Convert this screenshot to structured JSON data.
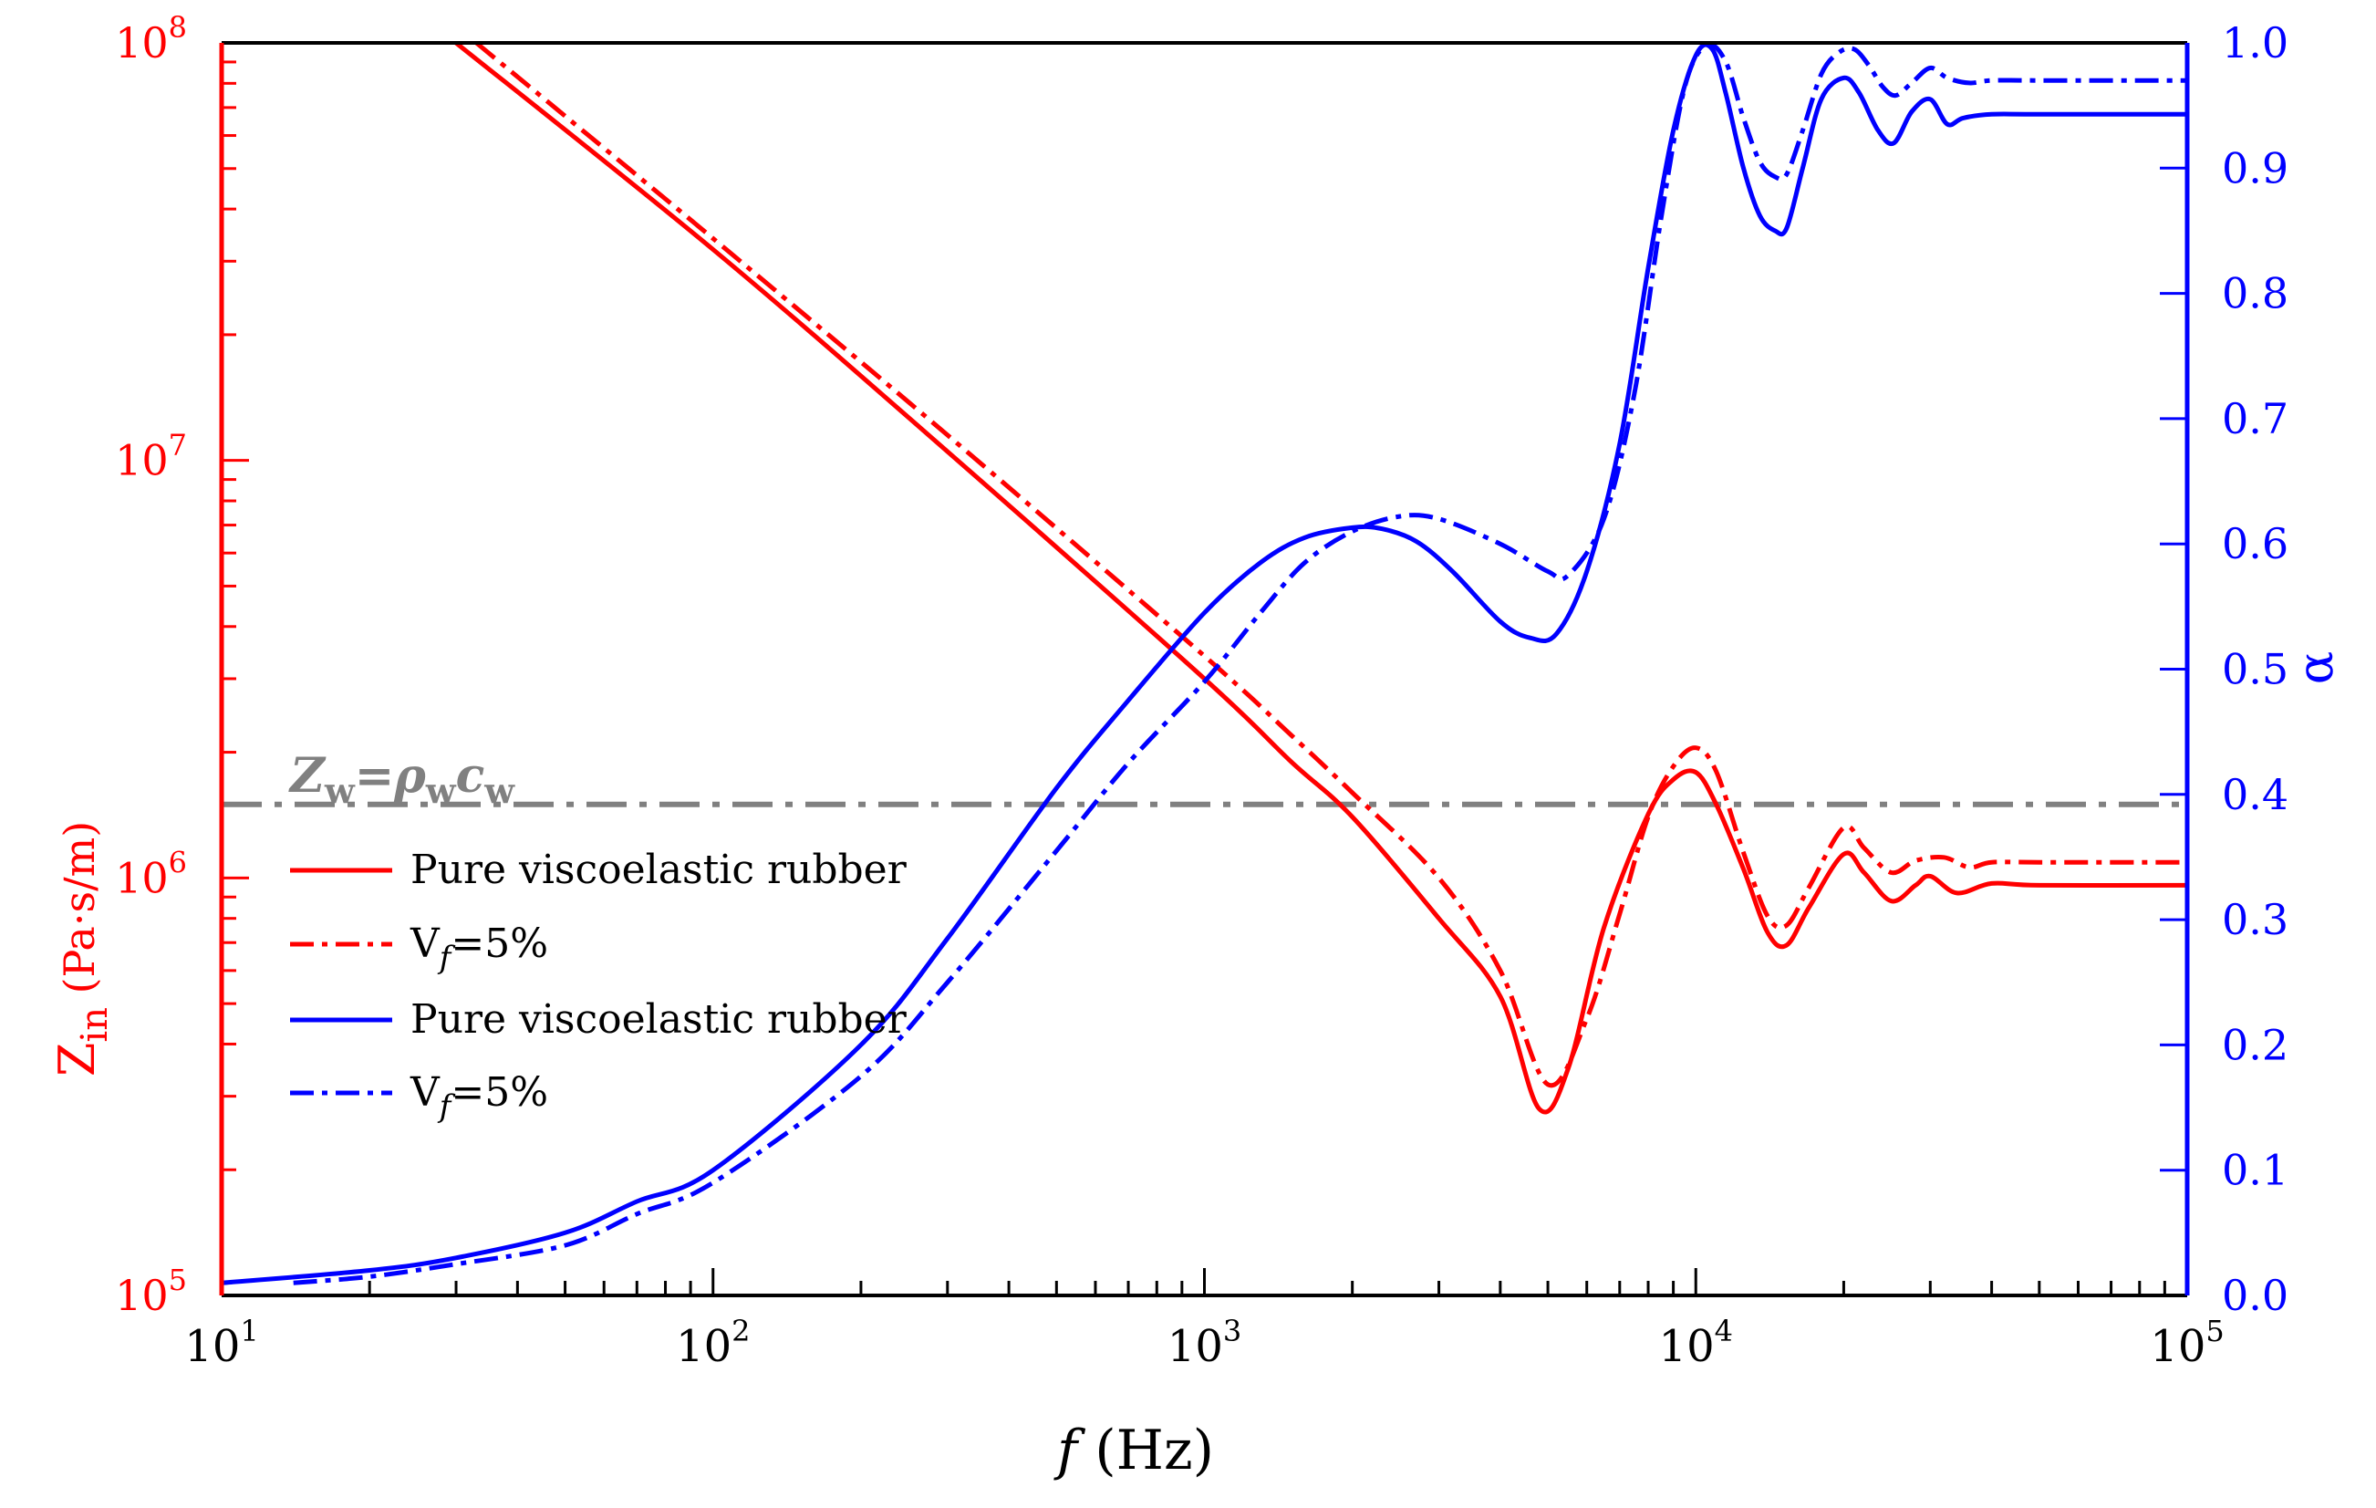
{
  "chart_data": {
    "type": "line",
    "xlabel": {
      "italic": "f",
      "rest": " (Hz)"
    },
    "x_scale": "log",
    "xlim": [
      10,
      100000
    ],
    "x_ticks": [
      {
        "value": 10,
        "base": "10",
        "exp": "1"
      },
      {
        "value": 100,
        "base": "10",
        "exp": "2"
      },
      {
        "value": 1000,
        "base": "10",
        "exp": "3"
      },
      {
        "value": 10000,
        "base": "10",
        "exp": "4"
      },
      {
        "value": 100000,
        "base": "10",
        "exp": "5"
      }
    ],
    "y_left": {
      "label": {
        "main": "Z",
        "sub": "in",
        "unit": " (Pa·s/m)"
      },
      "scale": "log",
      "lim": [
        100000,
        100000000
      ],
      "color": "#ff0000",
      "ticks": [
        {
          "value": 100000,
          "base": "10",
          "exp": "5"
        },
        {
          "value": 1000000,
          "base": "10",
          "exp": "6"
        },
        {
          "value": 10000000,
          "base": "10",
          "exp": "7"
        },
        {
          "value": 100000000,
          "base": "10",
          "exp": "8"
        }
      ]
    },
    "y_right": {
      "label": "α",
      "scale": "linear",
      "lim": [
        0.0,
        1.0
      ],
      "color": "#0000ff",
      "ticks": [
        "0.0",
        "0.1",
        "0.2",
        "0.3",
        "0.4",
        "0.5",
        "0.6",
        "0.7",
        "0.8",
        "0.9",
        "1.0"
      ]
    },
    "reference_line": {
      "axis": "left",
      "value": 1500000,
      "color": "#808080",
      "label": {
        "z": "Z",
        "zsub": "w",
        "eq": "=",
        "rho": "ρ",
        "rhosub": "w",
        "c": "c",
        "csub": "w"
      }
    },
    "legend": [
      {
        "series": 0,
        "text": "Pure viscoelastic rubber"
      },
      {
        "series": 1,
        "text_pre": "V",
        "text_sub": "f",
        "text_post": "=5%"
      },
      {
        "series": 2,
        "text": "Pure viscoelastic rubber"
      },
      {
        "series": 3,
        "text_pre": "V",
        "text_sub": "f",
        "text_post": "=5%"
      }
    ],
    "series": [
      {
        "name": "Zin pure viscoelastic rubber",
        "axis": "left",
        "color": "#ff0000",
        "style": "solid",
        "x": [
          30,
          100,
          300,
          1000,
          1500,
          2000,
          3000,
          4000,
          4800,
          5500,
          6500,
          8000,
          9000,
          10000,
          11000,
          12500,
          14000,
          15300,
          17000,
          20000,
          22000,
          25000,
          28000,
          30000,
          34000,
          40000,
          50000,
          100000
        ],
        "y": [
          100000000,
          32000000,
          10500000,
          3000000,
          1900000,
          1400000,
          800000,
          520000,
          280000,
          350000,
          760000,
          1420000,
          1720000,
          1790000,
          1500000,
          1050000,
          740000,
          690000,
          850000,
          1140000,
          1030000,
          880000,
          960000,
          1010000,
          920000,
          970000,
          960000,
          960000
        ]
      },
      {
        "name": "Zin Vf=5%",
        "axis": "left",
        "color": "#ff0000",
        "style": "dashdot",
        "x": [
          33,
          100,
          300,
          1000,
          1500,
          2000,
          3000,
          4000,
          5000,
          6000,
          7000,
          8000,
          9000,
          10000,
          11000,
          12500,
          14000,
          15300,
          17000,
          20000,
          22000,
          25000,
          28000,
          32000,
          36000,
          40000,
          50000,
          100000
        ],
        "y": [
          100000000,
          34000000,
          11500000,
          3400000,
          2200000,
          1600000,
          1000000,
          600000,
          320000,
          460000,
          820000,
          1400000,
          1850000,
          2050000,
          1800000,
          1150000,
          810000,
          770000,
          950000,
          1320000,
          1180000,
          1030000,
          1100000,
          1120000,
          1060000,
          1090000,
          1090000,
          1090000
        ]
      },
      {
        "name": "alpha pure viscoelastic rubber",
        "axis": "right",
        "color": "#0000ff",
        "style": "solid",
        "x": [
          10,
          20,
          30,
          50,
          70,
          100,
          200,
          300,
          500,
          700,
          1000,
          1300,
          1600,
          2000,
          2300,
          2700,
          3200,
          4000,
          4600,
          5200,
          6000,
          7000,
          8000,
          9000,
          10000,
          10800,
          11500,
          12500,
          13500,
          14500,
          15300,
          16500,
          18000,
          20000,
          21500,
          23500,
          25300,
          27500,
          30000,
          32500,
          35000,
          40000,
          50000,
          100000
        ],
        "y": [
          0.01,
          0.02,
          0.03,
          0.05,
          0.075,
          0.1,
          0.2,
          0.285,
          0.405,
          0.475,
          0.545,
          0.585,
          0.605,
          0.613,
          0.612,
          0.602,
          0.578,
          0.538,
          0.525,
          0.528,
          0.578,
          0.68,
          0.82,
          0.93,
          0.99,
          0.995,
          0.96,
          0.9,
          0.862,
          0.85,
          0.852,
          0.9,
          0.955,
          0.972,
          0.96,
          0.93,
          0.92,
          0.945,
          0.955,
          0.935,
          0.94,
          0.943,
          0.943,
          0.943
        ]
      },
      {
        "name": "alpha Vf=5%",
        "axis": "right",
        "color": "#0000ff",
        "style": "dashdot",
        "x": [
          14,
          20,
          30,
          50,
          70,
          100,
          200,
          300,
          500,
          700,
          1000,
          1300,
          1600,
          2000,
          2500,
          3000,
          4000,
          5000,
          5500,
          6500,
          7500,
          8500,
          9500,
          10500,
          11500,
          12500,
          13500,
          14500,
          15300,
          16500,
          18000,
          19500,
          21000,
          22500,
          24000,
          25500,
          27500,
          30000,
          32500,
          36000,
          40000,
          50000,
          100000
        ],
        "y": [
          0.01,
          0.015,
          0.025,
          0.04,
          0.065,
          0.09,
          0.175,
          0.25,
          0.355,
          0.425,
          0.49,
          0.545,
          0.585,
          0.61,
          0.622,
          0.62,
          0.6,
          0.578,
          0.575,
          0.62,
          0.72,
          0.86,
          0.965,
          0.998,
          0.985,
          0.94,
          0.905,
          0.893,
          0.895,
          0.93,
          0.975,
          0.992,
          0.995,
          0.982,
          0.965,
          0.958,
          0.968,
          0.98,
          0.972,
          0.968,
          0.97,
          0.97,
          0.97
        ]
      }
    ]
  }
}
